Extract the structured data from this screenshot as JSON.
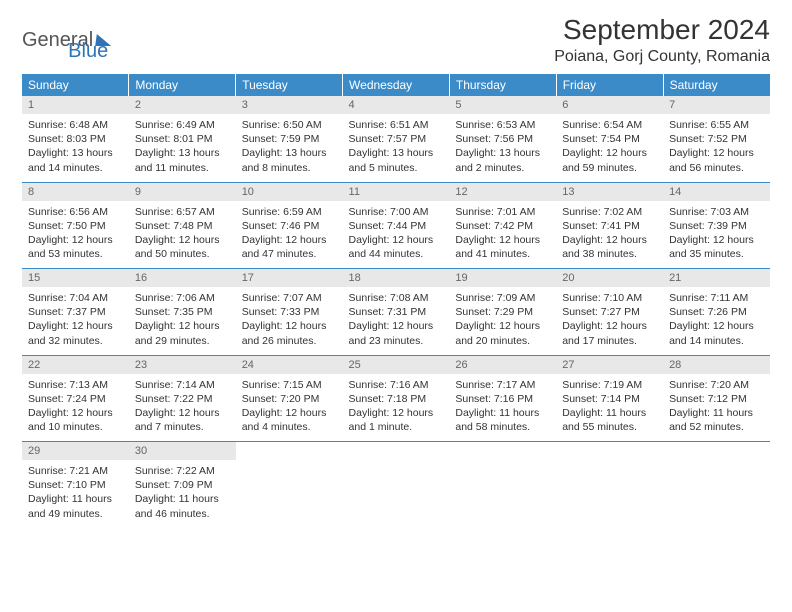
{
  "brand": {
    "word1": "General",
    "word2": "Blue"
  },
  "title": "September 2024",
  "location": "Poiana, Gorj County, Romania",
  "colors": {
    "header_bg": "#3b8bc9",
    "header_fg": "#ffffff",
    "daynum_bg": "#e8e8e8",
    "text": "#333333",
    "brand_blue": "#2f75b5",
    "page_bg": "#ffffff",
    "week_border": "#3b8bc9"
  },
  "day_headers": [
    "Sunday",
    "Monday",
    "Tuesday",
    "Wednesday",
    "Thursday",
    "Friday",
    "Saturday"
  ],
  "weeks": [
    [
      {
        "n": "1",
        "sunrise": "Sunrise: 6:48 AM",
        "sunset": "Sunset: 8:03 PM",
        "d1": "Daylight: 13 hours",
        "d2": "and 14 minutes."
      },
      {
        "n": "2",
        "sunrise": "Sunrise: 6:49 AM",
        "sunset": "Sunset: 8:01 PM",
        "d1": "Daylight: 13 hours",
        "d2": "and 11 minutes."
      },
      {
        "n": "3",
        "sunrise": "Sunrise: 6:50 AM",
        "sunset": "Sunset: 7:59 PM",
        "d1": "Daylight: 13 hours",
        "d2": "and 8 minutes."
      },
      {
        "n": "4",
        "sunrise": "Sunrise: 6:51 AM",
        "sunset": "Sunset: 7:57 PM",
        "d1": "Daylight: 13 hours",
        "d2": "and 5 minutes."
      },
      {
        "n": "5",
        "sunrise": "Sunrise: 6:53 AM",
        "sunset": "Sunset: 7:56 PM",
        "d1": "Daylight: 13 hours",
        "d2": "and 2 minutes."
      },
      {
        "n": "6",
        "sunrise": "Sunrise: 6:54 AM",
        "sunset": "Sunset: 7:54 PM",
        "d1": "Daylight: 12 hours",
        "d2": "and 59 minutes."
      },
      {
        "n": "7",
        "sunrise": "Sunrise: 6:55 AM",
        "sunset": "Sunset: 7:52 PM",
        "d1": "Daylight: 12 hours",
        "d2": "and 56 minutes."
      }
    ],
    [
      {
        "n": "8",
        "sunrise": "Sunrise: 6:56 AM",
        "sunset": "Sunset: 7:50 PM",
        "d1": "Daylight: 12 hours",
        "d2": "and 53 minutes."
      },
      {
        "n": "9",
        "sunrise": "Sunrise: 6:57 AM",
        "sunset": "Sunset: 7:48 PM",
        "d1": "Daylight: 12 hours",
        "d2": "and 50 minutes."
      },
      {
        "n": "10",
        "sunrise": "Sunrise: 6:59 AM",
        "sunset": "Sunset: 7:46 PM",
        "d1": "Daylight: 12 hours",
        "d2": "and 47 minutes."
      },
      {
        "n": "11",
        "sunrise": "Sunrise: 7:00 AM",
        "sunset": "Sunset: 7:44 PM",
        "d1": "Daylight: 12 hours",
        "d2": "and 44 minutes."
      },
      {
        "n": "12",
        "sunrise": "Sunrise: 7:01 AM",
        "sunset": "Sunset: 7:42 PM",
        "d1": "Daylight: 12 hours",
        "d2": "and 41 minutes."
      },
      {
        "n": "13",
        "sunrise": "Sunrise: 7:02 AM",
        "sunset": "Sunset: 7:41 PM",
        "d1": "Daylight: 12 hours",
        "d2": "and 38 minutes."
      },
      {
        "n": "14",
        "sunrise": "Sunrise: 7:03 AM",
        "sunset": "Sunset: 7:39 PM",
        "d1": "Daylight: 12 hours",
        "d2": "and 35 minutes."
      }
    ],
    [
      {
        "n": "15",
        "sunrise": "Sunrise: 7:04 AM",
        "sunset": "Sunset: 7:37 PM",
        "d1": "Daylight: 12 hours",
        "d2": "and 32 minutes."
      },
      {
        "n": "16",
        "sunrise": "Sunrise: 7:06 AM",
        "sunset": "Sunset: 7:35 PM",
        "d1": "Daylight: 12 hours",
        "d2": "and 29 minutes."
      },
      {
        "n": "17",
        "sunrise": "Sunrise: 7:07 AM",
        "sunset": "Sunset: 7:33 PM",
        "d1": "Daylight: 12 hours",
        "d2": "and 26 minutes."
      },
      {
        "n": "18",
        "sunrise": "Sunrise: 7:08 AM",
        "sunset": "Sunset: 7:31 PM",
        "d1": "Daylight: 12 hours",
        "d2": "and 23 minutes."
      },
      {
        "n": "19",
        "sunrise": "Sunrise: 7:09 AM",
        "sunset": "Sunset: 7:29 PM",
        "d1": "Daylight: 12 hours",
        "d2": "and 20 minutes."
      },
      {
        "n": "20",
        "sunrise": "Sunrise: 7:10 AM",
        "sunset": "Sunset: 7:27 PM",
        "d1": "Daylight: 12 hours",
        "d2": "and 17 minutes."
      },
      {
        "n": "21",
        "sunrise": "Sunrise: 7:11 AM",
        "sunset": "Sunset: 7:26 PM",
        "d1": "Daylight: 12 hours",
        "d2": "and 14 minutes."
      }
    ],
    [
      {
        "n": "22",
        "sunrise": "Sunrise: 7:13 AM",
        "sunset": "Sunset: 7:24 PM",
        "d1": "Daylight: 12 hours",
        "d2": "and 10 minutes."
      },
      {
        "n": "23",
        "sunrise": "Sunrise: 7:14 AM",
        "sunset": "Sunset: 7:22 PM",
        "d1": "Daylight: 12 hours",
        "d2": "and 7 minutes."
      },
      {
        "n": "24",
        "sunrise": "Sunrise: 7:15 AM",
        "sunset": "Sunset: 7:20 PM",
        "d1": "Daylight: 12 hours",
        "d2": "and 4 minutes."
      },
      {
        "n": "25",
        "sunrise": "Sunrise: 7:16 AM",
        "sunset": "Sunset: 7:18 PM",
        "d1": "Daylight: 12 hours",
        "d2": "and 1 minute."
      },
      {
        "n": "26",
        "sunrise": "Sunrise: 7:17 AM",
        "sunset": "Sunset: 7:16 PM",
        "d1": "Daylight: 11 hours",
        "d2": "and 58 minutes."
      },
      {
        "n": "27",
        "sunrise": "Sunrise: 7:19 AM",
        "sunset": "Sunset: 7:14 PM",
        "d1": "Daylight: 11 hours",
        "d2": "and 55 minutes."
      },
      {
        "n": "28",
        "sunrise": "Sunrise: 7:20 AM",
        "sunset": "Sunset: 7:12 PM",
        "d1": "Daylight: 11 hours",
        "d2": "and 52 minutes."
      }
    ],
    [
      {
        "n": "29",
        "sunrise": "Sunrise: 7:21 AM",
        "sunset": "Sunset: 7:10 PM",
        "d1": "Daylight: 11 hours",
        "d2": "and 49 minutes."
      },
      {
        "n": "30",
        "sunrise": "Sunrise: 7:22 AM",
        "sunset": "Sunset: 7:09 PM",
        "d1": "Daylight: 11 hours",
        "d2": "and 46 minutes."
      },
      null,
      null,
      null,
      null,
      null
    ]
  ]
}
